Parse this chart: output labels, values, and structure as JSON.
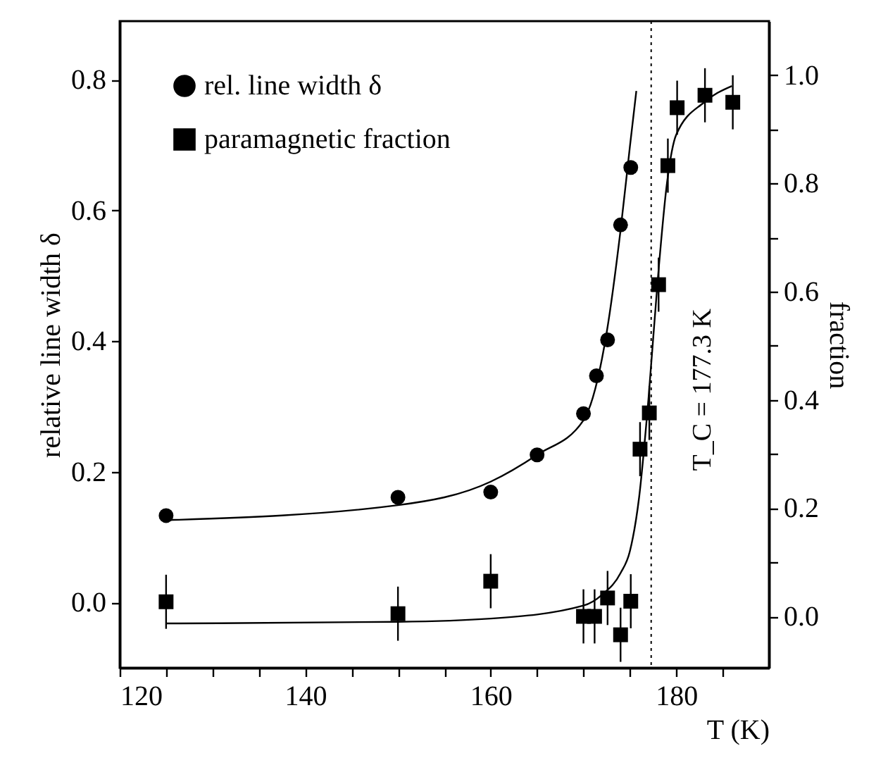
{
  "chart_data": {
    "type": "scatter",
    "xlabel": "T (K)",
    "ylabel": "relative line width δ",
    "y2label": "fraction",
    "xlim": [
      120,
      190
    ],
    "xticks": [
      120,
      {
        "value": 125,
        "label": null
      },
      {
        "value": 130,
        "label": null
      },
      {
        "value": 135,
        "label": null
      },
      140,
      {
        "value": 145,
        "label": null
      },
      {
        "value": 150,
        "label": null
      },
      {
        "value": 155,
        "label": null
      },
      160,
      {
        "value": 165,
        "label": null
      },
      {
        "value": 170,
        "label": null
      },
      {
        "value": 175,
        "label": null
      },
      180,
      {
        "value": 185,
        "label": null
      }
    ],
    "ylim": [
      -0.1,
      0.89
    ],
    "yticks": [
      {
        "value": 0,
        "label": "0.0"
      },
      0.2,
      0.4,
      0.6,
      0.8
    ],
    "y2lim": [
      -0.095,
      1.1
    ],
    "y2ticks": [
      {
        "value": 0,
        "label": "0.0"
      },
      {
        "value": 0.1,
        "label": null
      },
      0.2,
      {
        "value": 0.3,
        "label": null
      },
      0.4,
      {
        "value": 0.5,
        "label": null
      },
      0.6,
      {
        "value": 0.7,
        "label": null
      },
      0.8,
      {
        "value": 0.9,
        "label": null
      },
      {
        "value": 1,
        "label": "1.0"
      }
    ],
    "legend": "top left",
    "grid": false,
    "series": [
      {
        "name": "rel. line width δ",
        "marker": "circle",
        "color": "#000000",
        "axis": "y",
        "x": [
          125,
          150,
          160,
          165,
          170,
          171.4,
          172.6,
          174,
          175.1
        ],
        "values": [
          0.133,
          0.161,
          0.169,
          0.226,
          0.289,
          0.347,
          0.402,
          0.578,
          0.666
        ]
      },
      {
        "name": "paramagnetic fraction",
        "marker": "square",
        "color": "#000000",
        "axis": "y2",
        "x": [
          125,
          150,
          160,
          170,
          171.2,
          172.6,
          174,
          175.1,
          176.1,
          177.1,
          178.1,
          179.1,
          180.1,
          183.1,
          186.1
        ],
        "values": [
          0.027,
          0.005,
          0.065,
          0.0,
          0.0,
          0.034,
          -0.034,
          0.028,
          0.309,
          0.376,
          0.613,
          0.833,
          0.94,
          0.963,
          0.95
        ],
        "errors": [
          0.05,
          0.05,
          0.05,
          0.05,
          0.05,
          0.05,
          0.05,
          0.05,
          0.05,
          0.05,
          0.05,
          0.05,
          0.05,
          0.05,
          0.05
        ]
      },
      {
        "type": "line",
        "marker": "none",
        "color": "#000000",
        "axis": "y",
        "x": [
          125,
          150,
          160,
          165,
          170,
          172.5,
          174,
          175,
          175.7
        ],
        "values": [
          0.126,
          0.149,
          0.185,
          0.226,
          0.279,
          0.413,
          0.57,
          0.697,
          0.783
        ]
      },
      {
        "type": "line",
        "marker": "none",
        "color": "#000000",
        "axis": "y2",
        "x": [
          125,
          150,
          160,
          170,
          172,
          174,
          175,
          176,
          177,
          178,
          179,
          180,
          183,
          186
        ],
        "values": [
          -0.013,
          -0.01,
          -0.004,
          0.02,
          0.04,
          0.08,
          0.12,
          0.22,
          0.4,
          0.62,
          0.8,
          0.89,
          0.95,
          0.98
        ]
      }
    ],
    "ref_lines": [
      {
        "axis": "x",
        "value": 177.3,
        "label": "T_C = 177.3 K",
        "line_style": "dotted",
        "color": "#000000"
      }
    ]
  }
}
